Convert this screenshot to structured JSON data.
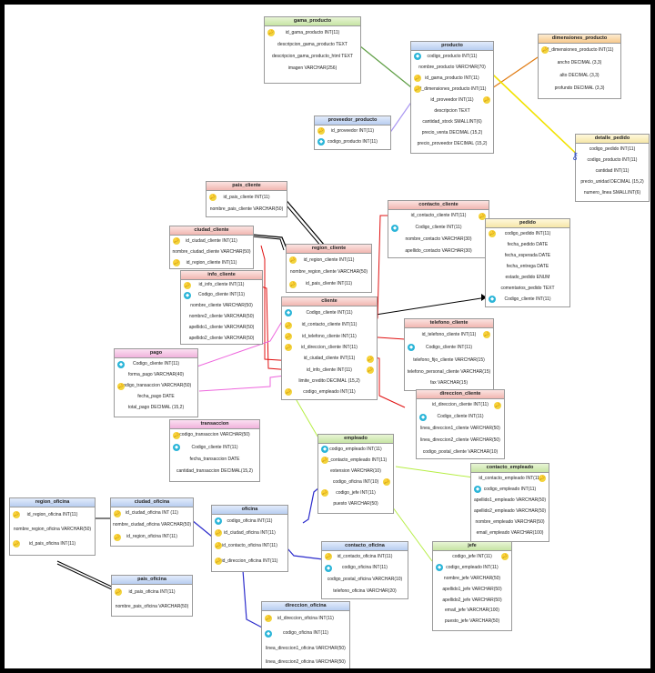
{
  "colors": {
    "green": "#5e9e44",
    "blue": "#2c2ccc",
    "red": "#e01010",
    "orange": "#e07a10",
    "yellow": "#f2e200",
    "violet": "#a996f2",
    "pink": "#ee66dd",
    "lime": "#b6ee44",
    "black": "#000000"
  },
  "tables": {
    "gama_producto": {
      "title": "gama_producto",
      "rows": [
        "id_gama_producto INT(11)",
        "descripcion_gama_producto TEXT",
        "descripcion_gama_producto_html TEXT",
        "imagen VARCHAR(256)"
      ]
    },
    "producto": {
      "title": "producto",
      "rows": [
        "codigo_producto INT(11)",
        "nombre_producto VARCHAR(70)",
        "id_gama_producto INT(11)",
        "id_dimensiones_producto INT(11)",
        "id_proveedor INT(11)",
        "descripcion TEXT",
        "cantidad_stock SMALLINT(6)",
        "precio_venta DECIMAL (15,2)",
        "precio_proveedor DECIMAL (15,2)"
      ]
    },
    "dimensiones_producto": {
      "title": "dimensiones_producto",
      "rows": [
        "id_dimensiones_producto INT(11)",
        "ancho DECIMAL (3,3)",
        "alto DECIMAL (3,3)",
        "profundo DECIMAL (3,3)"
      ]
    },
    "proveedor_producto": {
      "title": "proveedor_producto",
      "rows": [
        "id_proveedor INT(11)",
        "codigo_producto INT(11)"
      ]
    },
    "detalle_pedido": {
      "title": "detalle_pedido",
      "rows": [
        "codigo_pedido INT(11)",
        "codigo_producto INT(11)",
        "cantidad INT(11)",
        "precio_unidad DECIMAL (15,2)",
        "numero_linea SMALLINT(6)"
      ]
    },
    "pais_cliente": {
      "title": "pais_cliente",
      "rows": [
        "id_pais_cliente INT(11)",
        "nombre_pais_cliente VARCHAR(50)"
      ]
    },
    "ciudad_cliente": {
      "title": "ciudad_cliente",
      "rows": [
        "id_ciudad_cliente INT(11)",
        "nombre_ciudad_cliente VARCHAR(50)",
        "id_region_cliente INT(11)"
      ]
    },
    "contacto_cliente": {
      "title": "contacto_cliente",
      "rows": [
        "id_contacto_cliente INT(11)",
        "Codigo_cliente INT(11)",
        "nombre_contacto VARCHAR(30)",
        "apellido_contacto VARCHAR(30)"
      ]
    },
    "region_cliente": {
      "title": "region_cliente",
      "rows": [
        "id_region_cliente INT(11)",
        "nombre_region_cliente VARCHAR(50)",
        "id_pais_cliente INT(11)"
      ]
    },
    "pedido": {
      "title": "pedido",
      "rows": [
        "codigo_pedido INT(11)",
        "fecha_pedido DATE",
        "fecha_esperada DATE",
        "fecha_entrega DATE",
        "estado_pedido ENUM",
        "comentarios_pedido TEXT",
        "Codigo_cliente INT(11)"
      ]
    },
    "info_cliente": {
      "title": "info_cliente",
      "rows": [
        "id_info_cliente INT(11)",
        "Codigo_cliente INT(11)",
        "nombre_cliente VARCHAR(50)",
        "nombre2_cliente VARCHAR(50)",
        "apellido1_cliente VARCHAR(50)",
        "apellido2_cliente VARCHAR(50)"
      ]
    },
    "cliente": {
      "title": "cliente",
      "rows": [
        "Codigo_cliente INT(11)",
        "id_contacto_cliente INT(11)",
        "id_telefono_cliente INT(11)",
        "id_direccion_cliente INT(11)",
        "id_ciudad_cliente INT(11)",
        "id_info_cliente INT(11)",
        "limite_credito DECIMAL (15,2)",
        "codigo_empleado INT(11)"
      ]
    },
    "telefono_cliente": {
      "title": "telefono_cliente",
      "rows": [
        "id_telefono_cliente INT(11)",
        "Codigo_cliente INT(11)",
        "telefono_fijo_cliente VARCHAR(15)",
        "telefono_personal_cliente VARCHAR(15)",
        "fax VARCHAR(15)"
      ]
    },
    "pago": {
      "title": "pago",
      "rows": [
        "Codigo_cliente INT(11)",
        "forma_pago VARCHAR(40)",
        "codigo_transaccion VARCHAR(50)",
        "fecha_pago DATE",
        "total_pago DECIMAL (15,2)"
      ]
    },
    "direccion_cliente": {
      "title": "direccion_cliente",
      "rows": [
        "id_direccion_cliente INT(11)",
        "Codigo_cliente INT(11)",
        "linea_direccion1_cliente VARCHAR(50)",
        "linea_direccion2_cliente VARCHAR(50)",
        "codigo_postal_cliente VARCHAR(10)"
      ]
    },
    "transaccion": {
      "title": "transaccion",
      "rows": [
        "codigo_transaccion VARCHAR(50)",
        "Codigo_cliente INT(11)",
        "fecha_transaccion DATE",
        "cantidad_transaccion DECIMAL(15,2)"
      ]
    },
    "empleado": {
      "title": "empleado",
      "rows": [
        "codigo_empleado INT(11)",
        "id_contacto_empleado INT(11)",
        "extension VARCHAR(10)",
        "codigo_oficina INT(10)",
        "codigo_jefe INT(11)",
        "puesto VARCHAR(50)"
      ]
    },
    "contacto_empleado": {
      "title": "contacto_empleado",
      "rows": [
        "id_contacto_empleado INT(11)",
        "codigo_empleado INT(11)",
        "apellido1_empleado VARCHAR(50)",
        "apellido2_empleado VARCHAR(50)",
        "nombre_empleado VARCHAR(50)",
        "email_empleado VARCHAR(100)"
      ]
    },
    "region_oficina": {
      "title": "region_oficina",
      "rows": [
        "id_region_oficina INT(11)",
        "nombre_region_oficina VARCHAR(50)",
        "id_pais_oficina INT(11)"
      ]
    },
    "ciudad_oficina": {
      "title": "ciudad_oficina",
      "rows": [
        "id_ciudad_oficina INT (11)",
        "nombre_ciudad_oficina VARCHAR(50)",
        "id_region_oficina INT(11)"
      ]
    },
    "oficina": {
      "title": "oficina",
      "rows": [
        "codigo_oficina INT(11)",
        "id_ciudad_oficina INT(11)",
        "id_contacto_oficina INT(11)",
        "id_direccion_oficina INT(11)"
      ]
    },
    "contacto_oficina": {
      "title": "contacto_oficina",
      "rows": [
        "id_contacto_oficina INT(11)",
        "codigo_oficina INT(11)",
        "codigo_postal_oficina VARCHAR(10)",
        "telefono_oficina VARCHAR(20)"
      ]
    },
    "jefe": {
      "title": "jefe",
      "rows": [
        "codigo_jefe INT(11)",
        "codigo_empleado INT(11)",
        "nombre_jefe VARCHAR(50)",
        "apellido1_jefe VARCHAR(50)",
        "apellido2_jefe VARCHAR(50)",
        "email_jefe VARCHAR(100)",
        "puesto_jefe VARCHAR(50)"
      ]
    },
    "pais_oficina": {
      "title": "pais_oficina",
      "rows": [
        "id_pais_oficina INT(11)",
        "nombre_pais_oficina VARCHAR(50)"
      ]
    },
    "direccion_oficina": {
      "title": "direccion_oficina",
      "rows": [
        "id_direccion_oficina INT(11)",
        "codigo_oficina INT(11)",
        "linea_direccion1_oficina VARCHAR(50)",
        "linea_direccion2_oficina VARCHAR(50)"
      ]
    }
  }
}
